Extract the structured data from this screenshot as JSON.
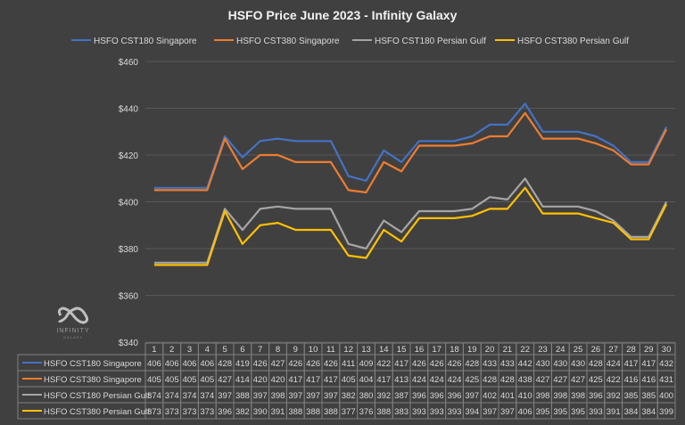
{
  "chart_data": {
    "type": "line",
    "title": "HSFO Price June 2023 - Infinity Galaxy",
    "categories": [
      1,
      2,
      3,
      4,
      5,
      6,
      7,
      8,
      9,
      10,
      11,
      12,
      13,
      14,
      15,
      16,
      17,
      18,
      19,
      20,
      21,
      22,
      23,
      24,
      25,
      26,
      27,
      28,
      29,
      30
    ],
    "ylim": [
      340,
      460
    ],
    "yticks": [
      340,
      360,
      380,
      400,
      420,
      440,
      460
    ],
    "ytick_labels": [
      "$340",
      "$360",
      "$380",
      "$400",
      "$420",
      "$440",
      "$460"
    ],
    "grid": true,
    "legend_position": "top",
    "data_table": true,
    "series": [
      {
        "name": "HSFO CST180 Singapore",
        "color": "#4472C4",
        "values": [
          406,
          406,
          406,
          406,
          428,
          419,
          426,
          427,
          426,
          426,
          426,
          411,
          409,
          422,
          417,
          426,
          426,
          426,
          428,
          433,
          433,
          442,
          430,
          430,
          430,
          428,
          424,
          417,
          417,
          432
        ]
      },
      {
        "name": "HSFO CST380 Singapore",
        "color": "#ED7D31",
        "values": [
          405,
          405,
          405,
          405,
          427,
          414,
          420,
          420,
          417,
          417,
          417,
          405,
          404,
          417,
          413,
          424,
          424,
          424,
          425,
          428,
          428,
          438,
          427,
          427,
          427,
          425,
          422,
          416,
          416,
          431
        ]
      },
      {
        "name": "HSFO CST180 Persian Gulf",
        "color": "#A5A5A5",
        "values": [
          374,
          374,
          374,
          374,
          397,
          388,
          397,
          398,
          397,
          397,
          397,
          382,
          380,
          392,
          387,
          396,
          396,
          396,
          397,
          402,
          401,
          410,
          398,
          398,
          398,
          396,
          392,
          385,
          385,
          400
        ]
      },
      {
        "name": "HSFO CST380 Persian Gulf",
        "color": "#FFC000",
        "values": [
          373,
          373,
          373,
          373,
          396,
          382,
          390,
          391,
          388,
          388,
          388,
          377,
          376,
          388,
          383,
          393,
          393,
          393,
          394,
          397,
          397,
          406,
          395,
          395,
          395,
          393,
          391,
          384,
          384,
          399
        ]
      }
    ]
  },
  "watermark": {
    "text": "INFINITY",
    "subtext": "GALAXY"
  }
}
